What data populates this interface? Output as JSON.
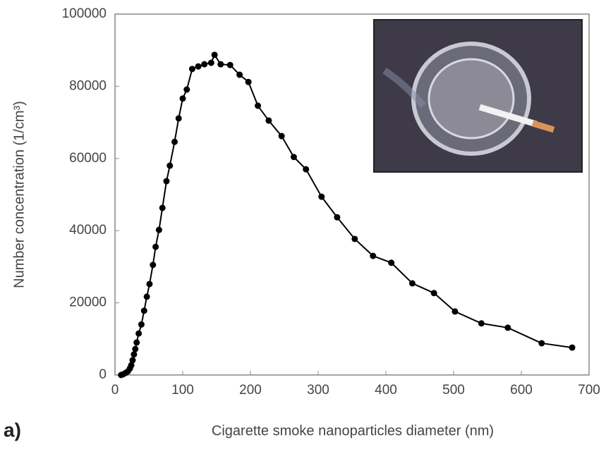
{
  "chart_data": {
    "type": "line",
    "annotation": "a)",
    "x_label": "Cigarette smoke nanoparticles diameter (nm)",
    "y_label": "Number concentration (1/cm³)",
    "x": [
      9,
      12,
      16,
      19,
      22,
      24,
      26,
      28,
      30,
      32,
      35,
      39,
      43,
      47,
      51,
      56,
      60,
      65,
      70,
      76,
      81,
      88,
      94,
      100,
      106,
      114,
      123,
      132,
      142,
      147,
      156,
      170,
      184,
      197,
      211,
      227,
      246,
      264,
      282,
      305,
      328,
      354,
      381,
      408,
      439,
      471,
      502,
      541,
      580,
      630,
      675
    ],
    "series": [
      {
        "color": "#000000",
        "values": [
          0,
          200,
          600,
          1000,
          1800,
          2700,
          4100,
          5700,
          7200,
          9000,
          11500,
          14000,
          17800,
          21700,
          25200,
          30500,
          35500,
          40200,
          46300,
          53700,
          58000,
          64600,
          71100,
          76600,
          79100,
          84800,
          85500,
          86100,
          86500,
          88700,
          86100,
          85900,
          83200,
          81200,
          74600,
          70500,
          66200,
          60400,
          57000,
          49400,
          43700,
          37700,
          33000,
          31100,
          25400,
          22700,
          17600,
          14300,
          13100,
          8800,
          7600
        ]
      }
    ],
    "xlim": [
      0,
      700
    ],
    "xticks": [
      0,
      100,
      200,
      300,
      400,
      500,
      600,
      700
    ],
    "ylim": [
      0,
      100000
    ],
    "yticks": [
      0,
      20000,
      40000,
      60000,
      80000,
      100000
    ]
  }
}
